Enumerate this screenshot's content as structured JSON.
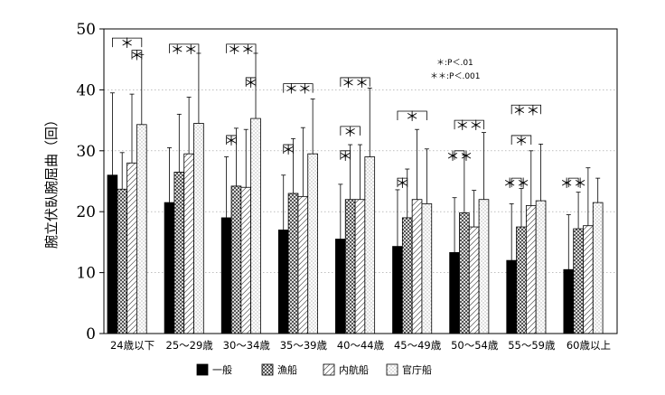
{
  "chart_data": {
    "type": "bar",
    "title": "",
    "xlabel": "",
    "ylabel": "腕立伏臥腕屈曲（回）",
    "ylim": [
      0,
      50
    ],
    "yticks": [
      0,
      10,
      20,
      30,
      40,
      50
    ],
    "grid": "horizontal dotted",
    "legend_position": "bottom",
    "categories": [
      "24歳以下",
      "25～29歳",
      "30～34歳",
      "35～39歳",
      "40～44歳",
      "45～49歳",
      "50～54歳",
      "55～59歳",
      "60歳以上"
    ],
    "series": [
      {
        "name": "一般",
        "values": [
          26.0,
          21.5,
          19.0,
          17.0,
          15.5,
          14.3,
          13.3,
          12.0,
          10.5
        ],
        "errors": [
          13.5,
          9.0,
          10.0,
          9.0,
          9.0,
          9.3,
          9.0,
          9.3,
          9.0
        ],
        "fill": "#000000"
      },
      {
        "name": "漁船",
        "values": [
          23.7,
          26.5,
          24.2,
          23.0,
          22.0,
          19.0,
          19.8,
          17.5,
          17.2
        ],
        "errors": [
          6.0,
          9.5,
          9.5,
          9.0,
          9.0,
          8.0,
          9.5,
          6.3,
          6.0
        ],
        "fill": "crosshatch"
      },
      {
        "name": "内航船",
        "values": [
          28.0,
          29.5,
          24.0,
          22.5,
          22.0,
          22.0,
          17.5,
          21.0,
          17.7
        ],
        "errors": [
          11.3,
          9.3,
          9.5,
          11.3,
          9.0,
          11.5,
          6.0,
          9.0,
          9.5
        ],
        "fill": "diagonal"
      },
      {
        "name": "官庁船",
        "values": [
          34.3,
          34.5,
          35.3,
          29.5,
          29.0,
          21.3,
          22.0,
          21.8,
          21.5
        ],
        "errors": [
          11.5,
          11.5,
          10.7,
          9.0,
          11.3,
          9.0,
          11.0,
          9.3,
          4.0
        ],
        "fill": "dotted"
      }
    ],
    "annotations": {
      "significance_legend": [
        "＊:P＜.01",
        "＊＊:P＜.001"
      ],
      "brackets": [
        {
          "group": 0,
          "from": 0,
          "to": 3,
          "y": 48.5,
          "label": "＊"
        },
        {
          "group": 0,
          "from": 2,
          "to": 3,
          "y": 46.5,
          "label": "＊"
        },
        {
          "group": 1,
          "from": 0,
          "to": 3,
          "y": 47.5,
          "label": "＊＊"
        },
        {
          "group": 2,
          "from": 0,
          "to": 3,
          "y": 47.5,
          "label": "＊＊"
        },
        {
          "group": 2,
          "from": 2,
          "to": 3,
          "y": 42.0,
          "label": "＊"
        },
        {
          "group": 2,
          "from": 0,
          "to": 1,
          "y": 32.5,
          "label": "＊"
        },
        {
          "group": 3,
          "from": 0,
          "to": 3,
          "y": 41.0,
          "label": "＊＊"
        },
        {
          "group": 3,
          "from": 0,
          "to": 1,
          "y": 31.0,
          "label": "＊"
        },
        {
          "group": 4,
          "from": 0,
          "to": 3,
          "y": 42.0,
          "label": "＊＊"
        },
        {
          "group": 4,
          "from": 0,
          "to": 2,
          "y": 34.0,
          "label": "＊"
        },
        {
          "group": 4,
          "from": 0,
          "to": 1,
          "y": 30.0,
          "label": "＊"
        },
        {
          "group": 5,
          "from": 0,
          "to": 3,
          "y": 36.5,
          "label": "＊"
        },
        {
          "group": 5,
          "from": 0,
          "to": 1,
          "y": 25.5,
          "label": "＊"
        },
        {
          "group": 6,
          "from": 0,
          "to": 3,
          "y": 35.0,
          "label": "＊＊"
        },
        {
          "group": 6,
          "from": 0,
          "to": 1,
          "y": 30.0,
          "label": "＊＊"
        },
        {
          "group": 7,
          "from": 0,
          "to": 3,
          "y": 37.5,
          "label": "＊＊"
        },
        {
          "group": 7,
          "from": 0,
          "to": 2,
          "y": 32.5,
          "label": "＊"
        },
        {
          "group": 7,
          "from": 0,
          "to": 1,
          "y": 25.5,
          "label": "＊＊"
        },
        {
          "group": 8,
          "from": 0,
          "to": 1,
          "y": 25.5,
          "label": "＊＊"
        }
      ]
    }
  }
}
